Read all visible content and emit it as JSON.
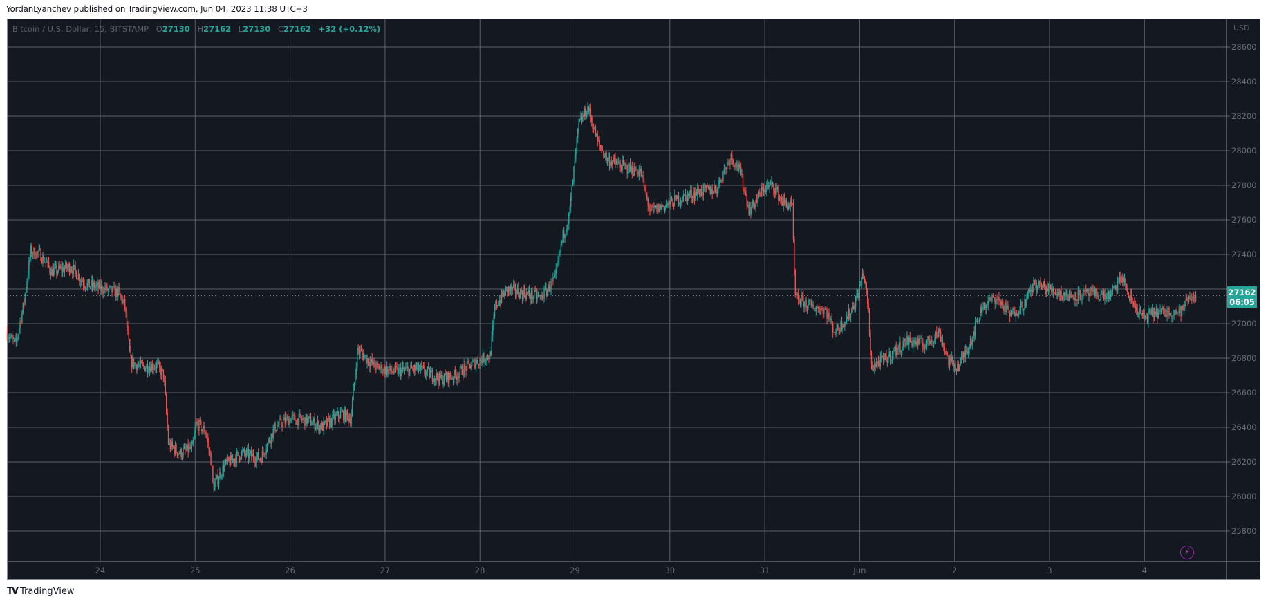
{
  "header": {
    "published": "YordanLyanchev published on TradingView.com, Jun 04, 2023 11:38 UTC+3"
  },
  "legend": {
    "symbol": "Bitcoin / U.S. Dollar, 15, BITSTAMP",
    "o_label": "O",
    "o_value": "27130",
    "h_label": "H",
    "h_value": "27162",
    "l_label": "L",
    "l_value": "27130",
    "c_label": "C",
    "c_value": "27162",
    "change": "+32 (+0.12%)"
  },
  "price_axis": {
    "currency": "USD",
    "last_price": "27162",
    "countdown": "06:05"
  },
  "footer": {
    "brand": "TradingView",
    "logo": "TV"
  },
  "colors": {
    "background": "#141821",
    "grid": "#5d606b",
    "up": "#26a69a",
    "down": "#ef5350",
    "last_price": "#26a69a",
    "alert_icon": "#9c27b0"
  },
  "chart_data": {
    "type": "candlestick",
    "title": "Bitcoin / U.S. Dollar, 15, BITSTAMP",
    "xlabel": "",
    "ylabel": "USD",
    "interval": "15m",
    "ylim": [
      25700,
      28700
    ],
    "y_ticks": [
      25800,
      26000,
      26200,
      26400,
      26600,
      26800,
      27000,
      27200,
      27400,
      27600,
      27800,
      28000,
      28200,
      28400,
      28600
    ],
    "x_ticks": [
      "24",
      "25",
      "26",
      "27",
      "28",
      "29",
      "30",
      "31",
      "Jun",
      "2",
      "3",
      "4"
    ],
    "grid": true,
    "last_price": 27162,
    "ohlc_last": {
      "open": 27130,
      "high": 27162,
      "low": 27130,
      "close": 27162,
      "change": 32,
      "change_pct": 0.12
    },
    "approx_close_path": [
      {
        "day": 23.02,
        "price": 26950
      },
      {
        "day": 23.12,
        "price": 26880
      },
      {
        "day": 23.2,
        "price": 27100
      },
      {
        "day": 23.28,
        "price": 27420
      },
      {
        "day": 23.38,
        "price": 27400
      },
      {
        "day": 23.5,
        "price": 27300
      },
      {
        "day": 23.7,
        "price": 27330
      },
      {
        "day": 23.85,
        "price": 27230
      },
      {
        "day": 24.05,
        "price": 27200
      },
      {
        "day": 24.2,
        "price": 27180
      },
      {
        "day": 24.27,
        "price": 27100
      },
      {
        "day": 24.33,
        "price": 26780
      },
      {
        "day": 24.45,
        "price": 26750
      },
      {
        "day": 24.6,
        "price": 26760
      },
      {
        "day": 24.68,
        "price": 26700
      },
      {
        "day": 24.73,
        "price": 26300
      },
      {
        "day": 24.85,
        "price": 26250
      },
      {
        "day": 24.98,
        "price": 26280
      },
      {
        "day": 25.02,
        "price": 26420
      },
      {
        "day": 25.12,
        "price": 26380
      },
      {
        "day": 25.18,
        "price": 26200
      },
      {
        "day": 25.2,
        "price": 26050
      },
      {
        "day": 25.32,
        "price": 26180
      },
      {
        "day": 25.5,
        "price": 26250
      },
      {
        "day": 25.7,
        "price": 26220
      },
      {
        "day": 25.85,
        "price": 26400
      },
      {
        "day": 26.0,
        "price": 26450
      },
      {
        "day": 26.2,
        "price": 26440
      },
      {
        "day": 26.35,
        "price": 26400
      },
      {
        "day": 26.55,
        "price": 26480
      },
      {
        "day": 26.65,
        "price": 26450
      },
      {
        "day": 26.72,
        "price": 26850
      },
      {
        "day": 26.9,
        "price": 26750
      },
      {
        "day": 27.1,
        "price": 26720
      },
      {
        "day": 27.35,
        "price": 26740
      },
      {
        "day": 27.6,
        "price": 26680
      },
      {
        "day": 27.75,
        "price": 26700
      },
      {
        "day": 27.9,
        "price": 26760
      },
      {
        "day": 28.12,
        "price": 26820
      },
      {
        "day": 28.17,
        "price": 27100
      },
      {
        "day": 28.3,
        "price": 27200
      },
      {
        "day": 28.5,
        "price": 27170
      },
      {
        "day": 28.65,
        "price": 27150
      },
      {
        "day": 28.8,
        "price": 27250
      },
      {
        "day": 28.88,
        "price": 27500
      },
      {
        "day": 28.95,
        "price": 27620
      },
      {
        "day": 29.05,
        "price": 28150
      },
      {
        "day": 29.15,
        "price": 28250
      },
      {
        "day": 29.25,
        "price": 28050
      },
      {
        "day": 29.35,
        "price": 27950
      },
      {
        "day": 29.55,
        "price": 27900
      },
      {
        "day": 29.7,
        "price": 27880
      },
      {
        "day": 29.8,
        "price": 27650
      },
      {
        "day": 29.95,
        "price": 27680
      },
      {
        "day": 30.1,
        "price": 27720
      },
      {
        "day": 30.3,
        "price": 27760
      },
      {
        "day": 30.5,
        "price": 27780
      },
      {
        "day": 30.65,
        "price": 27970
      },
      {
        "day": 30.75,
        "price": 27880
      },
      {
        "day": 30.85,
        "price": 27650
      },
      {
        "day": 31.0,
        "price": 27780
      },
      {
        "day": 31.1,
        "price": 27800
      },
      {
        "day": 31.2,
        "price": 27700
      },
      {
        "day": 31.3,
        "price": 27680
      },
      {
        "day": 31.33,
        "price": 27150
      },
      {
        "day": 31.5,
        "price": 27100
      },
      {
        "day": 31.65,
        "price": 27080
      },
      {
        "day": 31.75,
        "price": 26950
      },
      {
        "day": 31.9,
        "price": 27050
      },
      {
        "day": 32.0,
        "price": 27180
      },
      {
        "day": 32.05,
        "price": 27300
      },
      {
        "day": 32.1,
        "price": 27100
      },
      {
        "day": 32.13,
        "price": 26750
      },
      {
        "day": 32.3,
        "price": 26800
      },
      {
        "day": 32.5,
        "price": 26900
      },
      {
        "day": 32.7,
        "price": 26880
      },
      {
        "day": 32.85,
        "price": 26950
      },
      {
        "day": 32.95,
        "price": 26780
      },
      {
        "day": 33.05,
        "price": 26750
      },
      {
        "day": 33.18,
        "price": 26900
      },
      {
        "day": 33.3,
        "price": 27100
      },
      {
        "day": 33.45,
        "price": 27150
      },
      {
        "day": 33.6,
        "price": 27050
      },
      {
        "day": 33.75,
        "price": 27120
      },
      {
        "day": 33.85,
        "price": 27230
      },
      {
        "day": 34.0,
        "price": 27200
      },
      {
        "day": 34.2,
        "price": 27160
      },
      {
        "day": 34.45,
        "price": 27170
      },
      {
        "day": 34.65,
        "price": 27160
      },
      {
        "day": 34.78,
        "price": 27270
      },
      {
        "day": 34.85,
        "price": 27150
      },
      {
        "day": 35.0,
        "price": 27030
      },
      {
        "day": 35.1,
        "price": 27060
      },
      {
        "day": 35.3,
        "price": 27070
      },
      {
        "day": 35.4,
        "price": 27070
      },
      {
        "day": 35.48,
        "price": 27150
      },
      {
        "day": 35.55,
        "price": 27162
      }
    ]
  }
}
